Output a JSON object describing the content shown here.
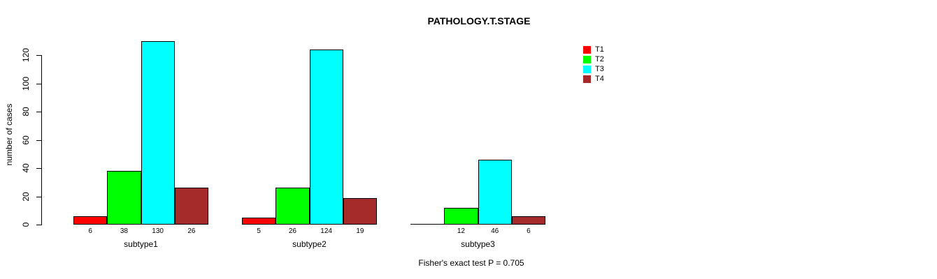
{
  "chart_data": {
    "type": "bar",
    "title": "PATHOLOGY.T.STAGE",
    "xlabel": "",
    "ylabel": "number of cases",
    "categories": [
      "subtype1",
      "subtype2",
      "subtype3"
    ],
    "series": [
      {
        "name": "T1",
        "color": "#FF0000",
        "values": [
          6,
          5,
          0
        ]
      },
      {
        "name": "T2",
        "color": "#00FF00",
        "values": [
          38,
          26,
          12
        ]
      },
      {
        "name": "T3",
        "color": "#00FFFF",
        "values": [
          130,
          124,
          46
        ]
      },
      {
        "name": "T4",
        "color": "#A52A2A",
        "values": [
          26,
          19,
          6
        ]
      }
    ],
    "yticks": [
      0,
      20,
      40,
      60,
      80,
      100,
      120
    ],
    "ylim": [
      0,
      130
    ],
    "grid": false,
    "legend_position": "top-right",
    "show_value_labels_under_bars": true,
    "hide_zero_value_labels": true,
    "annotation": "Fisher's exact test P = 0.705"
  }
}
